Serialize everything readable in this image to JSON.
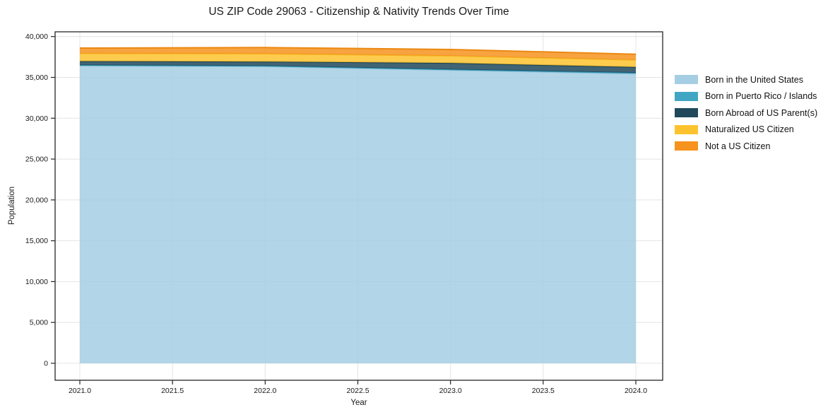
{
  "chart_data": {
    "type": "area",
    "stacked": true,
    "title": "US ZIP Code 29063 - Citizenship & Nativity Trends Over Time",
    "xlabel": "Year",
    "ylabel": "Population",
    "x": [
      2021,
      2022,
      2023,
      2024
    ],
    "series": [
      {
        "name": "Born in the United States",
        "color": "#a5cee3",
        "edge": "#92c3dc",
        "values": [
          36440,
          36340,
          35900,
          35450
        ]
      },
      {
        "name": "Born in Puerto Rico / Islands",
        "color": "#41a6c4",
        "edge": "#3697b6",
        "values": [
          60,
          70,
          80,
          100
        ]
      },
      {
        "name": "Born Abroad of US Parent(s)",
        "color": "#20495c",
        "edge": "#1b4051",
        "values": [
          480,
          520,
          780,
          710
        ]
      },
      {
        "name": "Naturalized US Citizen",
        "color": "#fdc32f",
        "edge": "#f4b723",
        "values": [
          950,
          970,
          880,
          870
        ]
      },
      {
        "name": "Not a US Citizen",
        "color": "#f6931e",
        "edge": "#ec8812",
        "values": [
          660,
          750,
          780,
          710
        ]
      }
    ],
    "xlim": [
      2021,
      2024
    ],
    "ylim": [
      0,
      40000
    ],
    "xticks": {
      "values": [
        2021.0,
        2021.5,
        2022.0,
        2022.5,
        2023.0,
        2023.5,
        2024.0
      ],
      "labels": [
        "2021.0",
        "2021.5",
        "2022.0",
        "2022.5",
        "2023.0",
        "2023.5",
        "2024.0"
      ]
    },
    "yticks": {
      "values": [
        0,
        5000,
        10000,
        15000,
        20000,
        25000,
        30000,
        35000,
        40000
      ],
      "labels": [
        "0",
        "5,000",
        "10,000",
        "15,000",
        "20,000",
        "25,000",
        "30,000",
        "35,000",
        "40,000"
      ]
    },
    "grid": true,
    "legend_position": "right",
    "gridline_color": "#e4e4e4",
    "border_color": "#262626",
    "text_color": "#1a1a1a"
  }
}
